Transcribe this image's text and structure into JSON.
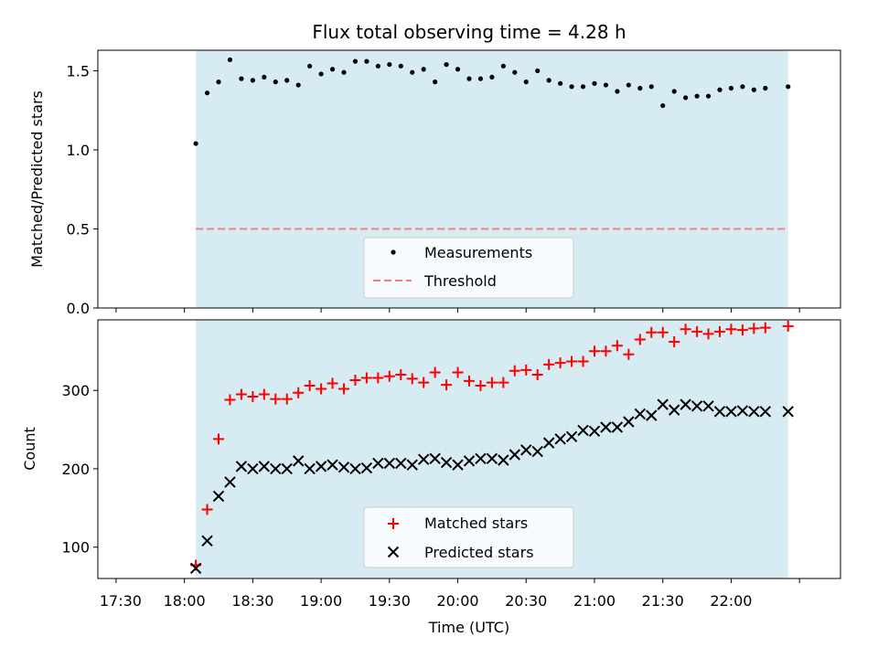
{
  "chart_data": [
    {
      "type": "scatter",
      "title": "Flux total observing time = 4.28 h",
      "ylabel": "Matched/Predicted stars",
      "xlabel": "",
      "ylim": [
        0,
        1.63
      ],
      "yticks": [
        0.0,
        0.5,
        1.0,
        1.5
      ],
      "ytick_labels": [
        "0.0",
        "0.5",
        "1.0",
        "1.5"
      ],
      "shaded_range_minutes": [
        35,
        295
      ],
      "threshold": 0.5,
      "legend": {
        "location": "lower center",
        "entries": [
          "Measurements",
          "Threshold"
        ]
      },
      "series": [
        {
          "name": "Measurements",
          "x_minutes": [
            35,
            40,
            45,
            50,
            55,
            60,
            65,
            70,
            75,
            80,
            85,
            90,
            95,
            100,
            105,
            110,
            115,
            120,
            125,
            130,
            135,
            140,
            145,
            150,
            155,
            160,
            165,
            170,
            175,
            180,
            185,
            190,
            195,
            200,
            205,
            210,
            215,
            220,
            225,
            230,
            235,
            240,
            245,
            250,
            255,
            260,
            265,
            270,
            275,
            280,
            285,
            295
          ],
          "values": [
            1.04,
            1.36,
            1.43,
            1.57,
            1.45,
            1.44,
            1.46,
            1.43,
            1.44,
            1.41,
            1.53,
            1.48,
            1.51,
            1.49,
            1.56,
            1.56,
            1.53,
            1.54,
            1.53,
            1.49,
            1.51,
            1.43,
            1.54,
            1.51,
            1.45,
            1.45,
            1.46,
            1.53,
            1.49,
            1.43,
            1.5,
            1.44,
            1.42,
            1.4,
            1.4,
            1.42,
            1.41,
            1.37,
            1.41,
            1.39,
            1.4,
            1.28,
            1.37,
            1.33,
            1.34,
            1.34,
            1.38,
            1.39,
            1.4,
            1.38,
            1.39,
            1.4
          ]
        }
      ]
    },
    {
      "type": "scatter",
      "xlabel": "Time (UTC)",
      "ylabel": "Count",
      "ylim": [
        60,
        390
      ],
      "yticks": [
        100,
        200,
        300
      ],
      "ytick_labels": [
        "100",
        "200",
        "300"
      ],
      "xlim_minutes": [
        -8,
        318
      ],
      "xticks_minutes": [
        0,
        30,
        60,
        90,
        120,
        150,
        180,
        210,
        240,
        270,
        300
      ],
      "xtick_labels": [
        "17:30",
        "18:00",
        "18:30",
        "19:00",
        "19:30",
        "20:00",
        "20:30",
        "21:00",
        "21:30",
        "22:00"
      ],
      "xtick_label_offsets": [
        2,
        30,
        60,
        90,
        120,
        150,
        180,
        210,
        240,
        270
      ],
      "shaded_range_minutes": [
        35,
        295
      ],
      "legend": {
        "location": "lower center",
        "entries": [
          "Matched stars",
          "Predicted stars"
        ]
      },
      "series": [
        {
          "name": "Matched stars",
          "marker": "plus",
          "color": "#ff0000",
          "x_minutes": [
            35,
            40,
            45,
            50,
            55,
            60,
            65,
            70,
            75,
            80,
            85,
            90,
            95,
            100,
            105,
            110,
            115,
            120,
            125,
            130,
            135,
            140,
            145,
            150,
            155,
            160,
            165,
            170,
            175,
            180,
            185,
            190,
            195,
            200,
            205,
            210,
            215,
            220,
            225,
            230,
            235,
            240,
            245,
            250,
            255,
            260,
            265,
            270,
            275,
            280,
            285,
            295
          ],
          "values": [
            77,
            148,
            238,
            288,
            295,
            292,
            295,
            289,
            289,
            297,
            306,
            302,
            309,
            302,
            313,
            316,
            316,
            318,
            320,
            315,
            310,
            323,
            307,
            323,
            312,
            306,
            310,
            310,
            325,
            326,
            320,
            333,
            335,
            337,
            337,
            350,
            350,
            357,
            346,
            365,
            374,
            374,
            362,
            378,
            375,
            372,
            375,
            378,
            377,
            379,
            380,
            382
          ]
        },
        {
          "name": "Predicted stars",
          "marker": "x",
          "color": "#000000",
          "x_minutes": [
            35,
            40,
            45,
            50,
            55,
            60,
            65,
            70,
            75,
            80,
            85,
            90,
            95,
            100,
            105,
            110,
            115,
            120,
            125,
            130,
            135,
            140,
            145,
            150,
            155,
            160,
            165,
            170,
            175,
            180,
            185,
            190,
            195,
            200,
            205,
            210,
            215,
            220,
            225,
            230,
            235,
            240,
            245,
            250,
            255,
            260,
            265,
            270,
            275,
            280,
            285,
            295
          ],
          "values": [
            73,
            108,
            165,
            183,
            203,
            200,
            203,
            200,
            200,
            210,
            200,
            203,
            205,
            202,
            200,
            201,
            207,
            207,
            207,
            205,
            212,
            213,
            208,
            205,
            210,
            213,
            213,
            211,
            218,
            224,
            222,
            233,
            238,
            241,
            249,
            248,
            253,
            253,
            260,
            270,
            268,
            282,
            275,
            282,
            280,
            280,
            273,
            273,
            274,
            273,
            273,
            273
          ]
        }
      ]
    }
  ]
}
